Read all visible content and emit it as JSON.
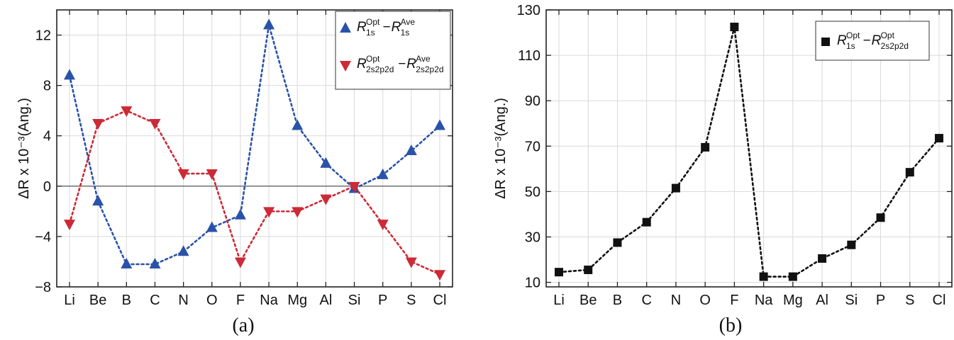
{
  "chart_data": [
    {
      "type": "line",
      "panel_label": "(a)",
      "categories": [
        "Li",
        "Be",
        "B",
        "C",
        "N",
        "O",
        "F",
        "Na",
        "Mg",
        "Al",
        "Si",
        "P",
        "S",
        "Cl"
      ],
      "ylabel": "ΔR x 10⁻³(Ang.)",
      "ylim": [
        -8,
        14
      ],
      "yticks": [
        -8,
        -4,
        0,
        4,
        8,
        12
      ],
      "yticklabels": [
        "−8",
        "−4",
        "0",
        "4",
        "8",
        "12"
      ],
      "grid": true,
      "legend_position": "top-right",
      "series": [
        {
          "name": "R1s^Opt − R1s^Ave",
          "legend": {
            "r": "R",
            "sup1": "Opt",
            "sub1": "1s",
            "minus": "−",
            "sup2": "Ave",
            "sub2": "1s"
          },
          "marker": "triangle-up",
          "color": "#2a52a8",
          "values": [
            8.8,
            -1.2,
            -6.2,
            -6.2,
            -5.2,
            -3.3,
            -2.3,
            12.8,
            4.8,
            1.8,
            -0.2,
            0.9,
            2.8,
            4.8
          ]
        },
        {
          "name": "R2s2p2d^Opt − R2s2p2d^Ave",
          "legend": {
            "r": "R",
            "sup1": "Opt",
            "sub1": "2s2p2d",
            "minus": "−",
            "sup2": "Ave",
            "sub2": "2s2p2d"
          },
          "marker": "triangle-down",
          "color": "#cc2a36",
          "values": [
            -3.0,
            5.0,
            6.0,
            5.0,
            1.0,
            1.0,
            -6.0,
            -2.0,
            -2.0,
            -1.0,
            0.0,
            -3.0,
            -6.0,
            -7.0
          ]
        }
      ]
    },
    {
      "type": "line",
      "panel_label": "(b)",
      "categories": [
        "Li",
        "Be",
        "B",
        "C",
        "N",
        "O",
        "F",
        "Na",
        "Mg",
        "Al",
        "Si",
        "P",
        "S",
        "Cl"
      ],
      "ylabel": "ΔR x 10⁻³(Ang.)",
      "ylim": [
        8,
        130
      ],
      "yticks": [
        10,
        30,
        50,
        70,
        90,
        110,
        130
      ],
      "grid": true,
      "legend_position": "top-right",
      "series": [
        {
          "name": "R1s^Opt − R2s2p2d^Opt",
          "legend": {
            "r": "R",
            "sup1": "Opt",
            "sub1": "1s",
            "minus": "−",
            "sup2": "Opt",
            "sub2": "2s2p2d"
          },
          "marker": "square",
          "color": "#111111",
          "values": [
            14.5,
            15.5,
            27.5,
            36.5,
            51.5,
            69.5,
            122.5,
            12.5,
            12.5,
            20.5,
            26.5,
            38.5,
            58.5,
            73.5
          ]
        }
      ]
    }
  ]
}
